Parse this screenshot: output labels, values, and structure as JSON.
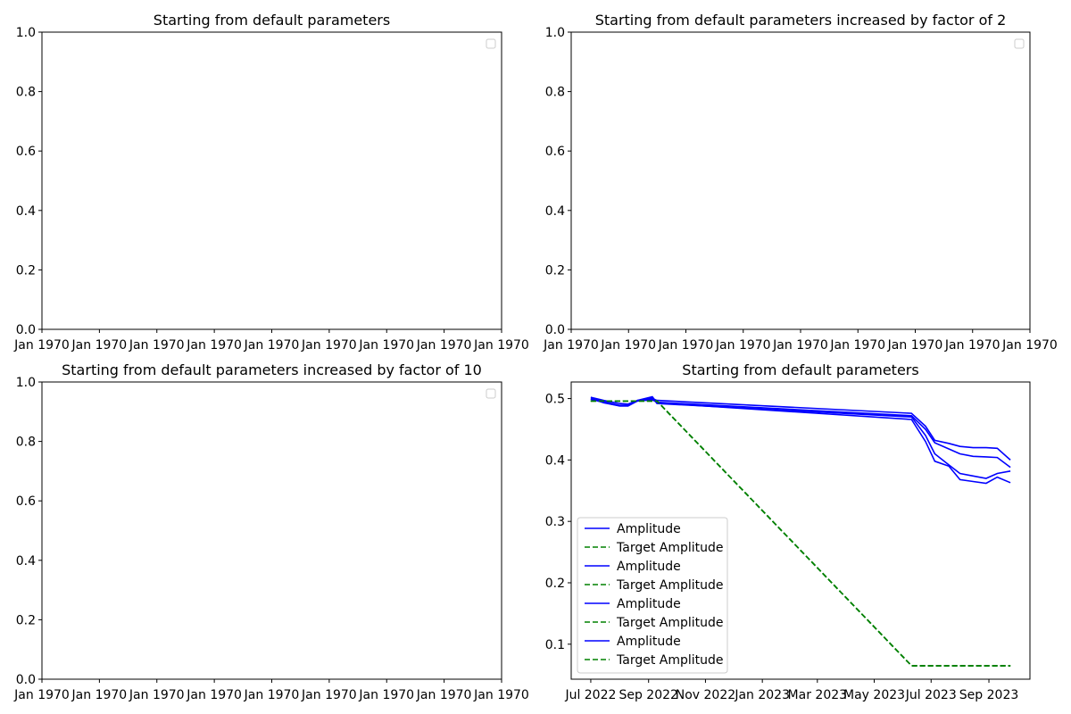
{
  "chart_data": [
    {
      "type": "line",
      "title": "Starting from default parameters",
      "xlabel": "",
      "ylabel": "",
      "ylim": [
        0,
        1
      ],
      "yticks": [
        "0.0",
        "0.2",
        "0.4",
        "0.6",
        "0.8",
        "1.0"
      ],
      "xticks": [
        "Jan 1970",
        "Jan 1970",
        "Jan 1970",
        "Jan 1970",
        "Jan 1970",
        "Jan 1970",
        "Jan 1970",
        "Jan 1970",
        "Jan 1970"
      ],
      "legend": "upper right, empty",
      "grid": false,
      "series": []
    },
    {
      "type": "line",
      "title": "Starting from default parameters increased by factor of 2",
      "xlabel": "",
      "ylabel": "",
      "ylim": [
        0,
        1
      ],
      "yticks": [
        "0.0",
        "0.2",
        "0.4",
        "0.6",
        "0.8",
        "1.0"
      ],
      "xticks": [
        "Jan 1970",
        "Jan 1970",
        "Jan 1970",
        "Jan 1970",
        "Jan 1970",
        "Jan 1970",
        "Jan 1970",
        "Jan 1970",
        "Jan 1970"
      ],
      "legend": "upper right, empty",
      "grid": false,
      "series": []
    },
    {
      "type": "line",
      "title": "Starting from default parameters increased by factor of 10",
      "xlabel": "",
      "ylabel": "",
      "ylim": [
        0,
        1
      ],
      "yticks": [
        "0.0",
        "0.2",
        "0.4",
        "0.6",
        "0.8",
        "1.0"
      ],
      "xticks": [
        "Jan 1970",
        "Jan 1970",
        "Jan 1970",
        "Jan 1970",
        "Jan 1970",
        "Jan 1970",
        "Jan 1970",
        "Jan 1970",
        "Jan 1970"
      ],
      "legend": "upper right, empty",
      "grid": false,
      "series": []
    },
    {
      "type": "line",
      "title": "Starting from default parameters",
      "xlabel": "",
      "ylabel": "",
      "xlim": [
        "2022-06-10",
        "2023-10-15"
      ],
      "ylim": [
        0.043,
        0.527
      ],
      "yticks": [
        "0.1",
        "0.2",
        "0.3",
        "0.4",
        "0.5"
      ],
      "yticks_values": [
        0.1,
        0.2,
        0.3,
        0.4,
        0.5
      ],
      "xticks": [
        "Jul 2022",
        "Sep 2022",
        "Nov 2022",
        "Jan 2023",
        "Mar 2023",
        "May 2023",
        "Jul 2023",
        "Sep 2023"
      ],
      "xticks_values": [
        "2022-07-01",
        "2022-09-01",
        "2022-11-01",
        "2023-01-01",
        "2023-03-01",
        "2023-05-01",
        "2023-07-01",
        "2023-09-01"
      ],
      "legend": "lower left",
      "grid": false,
      "series": [
        {
          "name": "Amplitude",
          "color": "#0000ff",
          "style": "solid",
          "x": [
            "2022-07-01",
            "2022-07-15",
            "2022-08-01",
            "2022-08-10",
            "2022-08-20",
            "2022-09-05",
            "2022-09-10",
            "2023-06-10",
            "2023-06-25",
            "2023-07-05",
            "2023-07-20",
            "2023-08-01",
            "2023-08-15",
            "2023-08-29",
            "2023-09-10",
            "2023-09-24"
          ],
          "y": [
            0.502,
            0.497,
            0.492,
            0.491,
            0.497,
            0.5,
            0.497,
            0.476,
            0.455,
            0.432,
            0.427,
            0.422,
            0.42,
            0.42,
            0.419,
            0.4
          ]
        },
        {
          "name": "Target Amplitude",
          "color": "#008000",
          "style": "dashed",
          "x": [
            "2022-07-01",
            "2022-09-10",
            "2023-06-10",
            "2023-09-24"
          ],
          "y": [
            0.496,
            0.496,
            0.065,
            0.065
          ]
        },
        {
          "name": "Amplitude",
          "color": "#0000ff",
          "style": "solid",
          "x": [
            "2022-07-01",
            "2022-07-15",
            "2022-08-01",
            "2022-08-10",
            "2022-08-20",
            "2022-09-05",
            "2022-09-10",
            "2023-06-10",
            "2023-06-25",
            "2023-07-05",
            "2023-07-20",
            "2023-08-01",
            "2023-08-15",
            "2023-08-29",
            "2023-09-10",
            "2023-09-24"
          ],
          "y": [
            0.5,
            0.495,
            0.489,
            0.489,
            0.496,
            0.498,
            0.494,
            0.472,
            0.45,
            0.428,
            0.418,
            0.41,
            0.406,
            0.405,
            0.404,
            0.388
          ]
        },
        {
          "name": "Target Amplitude",
          "color": "#008000",
          "style": "dashed",
          "x": [
            "2022-07-01",
            "2022-09-10",
            "2023-06-10",
            "2023-09-24"
          ],
          "y": [
            0.496,
            0.496,
            0.065,
            0.065
          ]
        },
        {
          "name": "Amplitude",
          "color": "#0000ff",
          "style": "solid",
          "x": [
            "2022-07-01",
            "2022-07-15",
            "2022-08-01",
            "2022-08-10",
            "2022-08-20",
            "2022-09-05",
            "2022-09-10",
            "2023-06-10",
            "2023-06-25",
            "2023-07-05",
            "2023-07-20",
            "2023-08-01",
            "2023-08-15",
            "2023-08-29",
            "2023-09-10",
            "2023-09-24"
          ],
          "y": [
            0.499,
            0.494,
            0.488,
            0.488,
            0.496,
            0.502,
            0.492,
            0.47,
            0.44,
            0.41,
            0.392,
            0.378,
            0.374,
            0.37,
            0.378,
            0.382
          ]
        },
        {
          "name": "Target Amplitude",
          "color": "#008000",
          "style": "dashed",
          "x": [
            "2022-07-01",
            "2022-09-10",
            "2023-06-10",
            "2023-09-24"
          ],
          "y": [
            0.496,
            0.496,
            0.065,
            0.065
          ]
        },
        {
          "name": "Amplitude",
          "color": "#0000ff",
          "style": "solid",
          "x": [
            "2022-07-01",
            "2022-07-15",
            "2022-08-01",
            "2022-08-10",
            "2022-08-20",
            "2022-09-05",
            "2022-09-10",
            "2023-06-10",
            "2023-06-25",
            "2023-07-05",
            "2023-07-20",
            "2023-08-01",
            "2023-08-15",
            "2023-08-29",
            "2023-09-10",
            "2023-09-24"
          ],
          "y": [
            0.5,
            0.493,
            0.488,
            0.488,
            0.497,
            0.503,
            0.493,
            0.466,
            0.43,
            0.398,
            0.39,
            0.368,
            0.365,
            0.362,
            0.372,
            0.363
          ]
        },
        {
          "name": "Target Amplitude",
          "color": "#008000",
          "style": "dashed",
          "x": [
            "2022-07-01",
            "2022-09-10",
            "2023-06-10",
            "2023-09-24"
          ],
          "y": [
            0.496,
            0.496,
            0.065,
            0.065
          ]
        }
      ]
    }
  ]
}
